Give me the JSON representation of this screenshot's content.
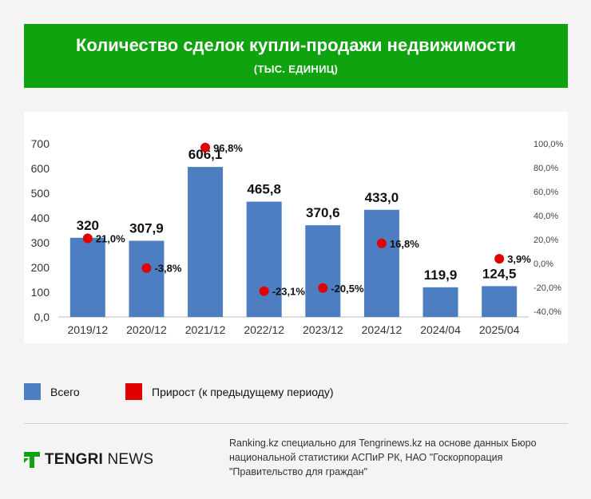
{
  "header": {
    "title": "Количество сделок купли-продажи недвижимости",
    "subtitle": "(ТЫС. ЕДИНИЦ)"
  },
  "colors": {
    "header_bg": "#0fa30f",
    "bar": "#4e7ec2",
    "growth": "#e00000"
  },
  "chart_data": {
    "type": "bar",
    "categories": [
      "2019/12",
      "2020/12",
      "2021/12",
      "2022/12",
      "2023/12",
      "2024/12",
      "2024/04",
      "2025/04"
    ],
    "series": [
      {
        "name": "Всего",
        "values": [
          320,
          307.9,
          606.1,
          465.8,
          370.6,
          433.0,
          119.9,
          124.5
        ],
        "labels": [
          "320",
          "307,9",
          "606,1",
          "465,8",
          "370,6",
          "433,0",
          "119,9",
          "124,5"
        ],
        "axis": "left"
      },
      {
        "name": "Прирост (к предыдущему периоду)",
        "type": "scatter",
        "values": [
          21.0,
          -3.8,
          96.8,
          -23.1,
          -20.5,
          16.8,
          null,
          3.9
        ],
        "labels": [
          "21,0%",
          "-3,8%",
          "96,8%",
          "-23,1%",
          "-20,5%",
          "16,8%",
          null,
          "3,9%"
        ],
        "axis": "right"
      }
    ],
    "ylim": [
      0,
      700
    ],
    "yticks": [
      "0,0",
      "100",
      "200",
      "300",
      "400",
      "500",
      "600",
      "700"
    ],
    "y2lim": [
      -40,
      100
    ],
    "y2ticks": [
      "-40,0%",
      "-20,0%",
      "0,0%",
      "20,0%",
      "40,0%",
      "60,0%",
      "80,0%",
      "100,0%"
    ],
    "grid": false,
    "legend_position": "bottom"
  },
  "legend": {
    "total": "Всего",
    "growth": "Прирост (к предыдущему периоду)"
  },
  "logo": {
    "brand_bold": "TENGRI",
    "brand_light": " NEWS"
  },
  "source": "Ranking.kz специально для Tengrinews.kz на основе данных Бюро национальной статистики АСПиР РК, НАО \"Госкорпорация \"Правительство для граждан\""
}
